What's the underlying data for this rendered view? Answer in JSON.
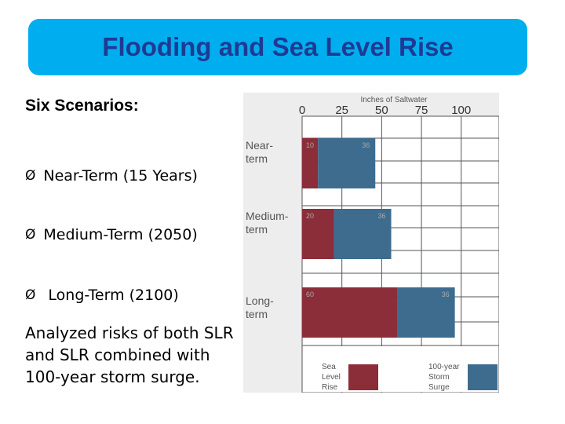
{
  "slide": {
    "title": "Flooding and Sea Level Rise",
    "heading": "Six Scenarios:",
    "bullets": [
      {
        "marker": "Ø",
        "text": "Near-Term (15 Years)"
      },
      {
        "marker": "Ø",
        "text": "Medium-Term (2050)"
      },
      {
        "marker": "Ø",
        "text": " Long-Term (2100)"
      }
    ],
    "body": "Analyzed risks of both SLR and SLR combined with 100-year storm surge."
  },
  "colors": {
    "banner": "#00aeef",
    "title": "#1f3a93",
    "sea_level_rise": "#8c2d3a",
    "storm_surge": "#3d6c8f",
    "grid": "#555555"
  },
  "chart_data": {
    "type": "bar",
    "orientation": "horizontal",
    "stacked": true,
    "title": "Inches of Saltwater",
    "x_ticks": [
      0,
      25,
      50,
      75,
      100
    ],
    "xlim": [
      0,
      125
    ],
    "categories": [
      [
        "Near-",
        "term"
      ],
      [
        "Medium-",
        "term"
      ],
      [
        "Long-",
        "term"
      ]
    ],
    "series": [
      {
        "name": "Sea Level Rise",
        "legend_lines": [
          "Sea",
          "Level",
          "Rise"
        ],
        "values": [
          10,
          20,
          60
        ]
      },
      {
        "name": "100-year Storm Surge",
        "legend_lines": [
          "100-year",
          "Storm",
          "Surge"
        ],
        "values": [
          36,
          36,
          36
        ]
      }
    ],
    "grid": true
  }
}
